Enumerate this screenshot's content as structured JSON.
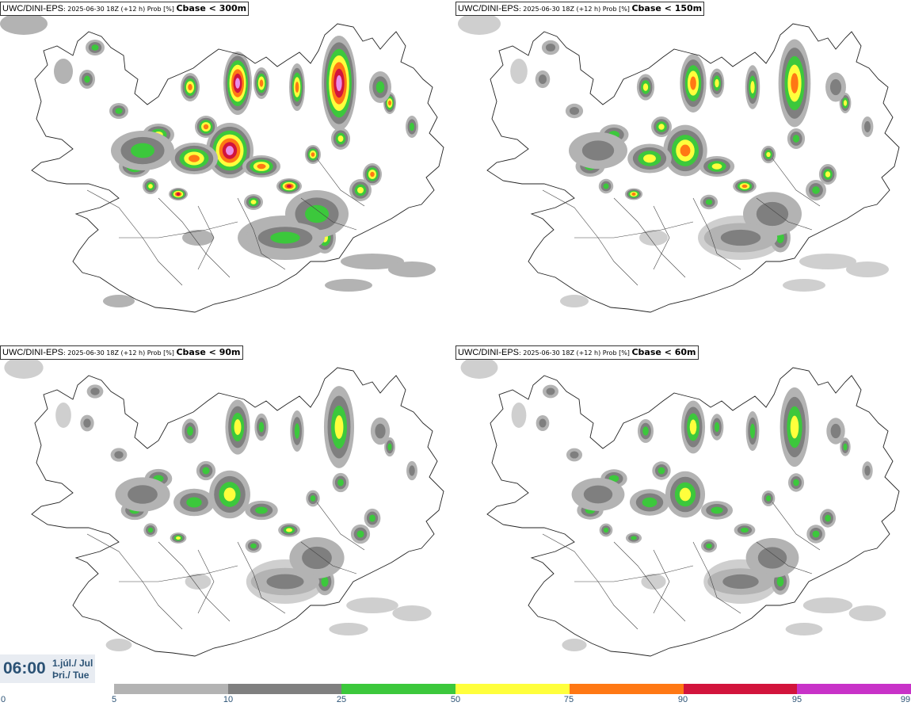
{
  "panels": [
    {
      "model": "UWC/DINI-EPS",
      "meta": ": 2025-06-30 18Z (+12 h) Prob [%] ",
      "cbase": "Cbase < 300m",
      "intensity": 1.0
    },
    {
      "model": "UWC/DINI-EPS",
      "meta": ": 2025-06-30 18Z (+12 h) Prob [%] ",
      "cbase": "Cbase < 150m",
      "intensity": 0.75
    },
    {
      "model": "UWC/DINI-EPS",
      "meta": ": 2025-06-30 18Z (+12 h) Prob [%] ",
      "cbase": "Cbase < 90m",
      "intensity": 0.55
    },
    {
      "model": "UWC/DINI-EPS",
      "meta": ": 2025-06-30 18Z (+12 h) Prob [%] ",
      "cbase": "Cbase < 60m",
      "intensity": 0.45
    }
  ],
  "time": {
    "clock": "06:00",
    "date_line": "1.júl./ Jul",
    "day_line": "Þri./ Tue"
  },
  "colorbar": {
    "ticks": [
      "0",
      "5",
      "10",
      "25",
      "50",
      "75",
      "90",
      "95",
      "99"
    ],
    "colors": [
      "#b3b3b3",
      "#7f7f7f",
      "#3cc83c",
      "#ffff3c",
      "#ff7814",
      "#d2143c",
      "#c832c8"
    ]
  }
}
